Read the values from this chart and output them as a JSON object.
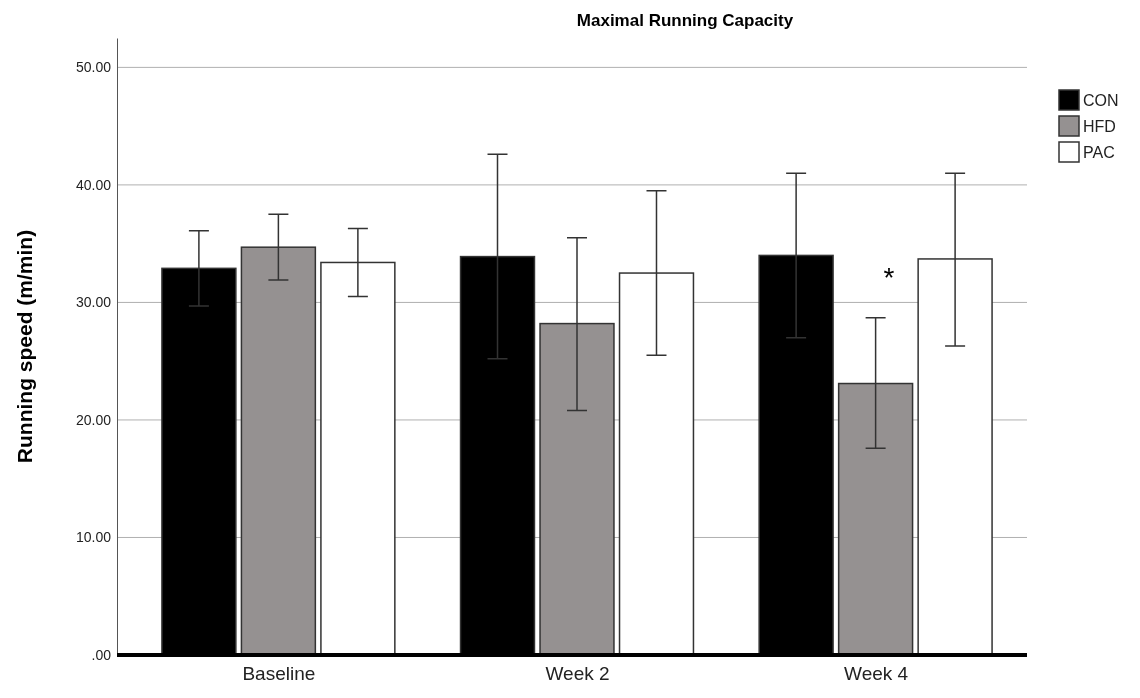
{
  "chart_data": {
    "type": "bar",
    "title": "Maximal Running Capacity",
    "ylabel": "Running speed (m/min)",
    "categories": [
      "Baseline",
      "Week 2",
      "Week 4"
    ],
    "series": [
      {
        "name": "CON",
        "color": "#000000",
        "values": [
          32.9,
          33.9,
          34.0
        ],
        "errors": [
          3.2,
          8.7,
          7.0
        ]
      },
      {
        "name": "HFD",
        "color": "#959191",
        "values": [
          34.7,
          28.2,
          23.1
        ],
        "errors": [
          [
            31.9,
            37.5
          ],
          [
            20.8,
            35.5
          ],
          [
            17.6,
            28.7
          ]
        ]
      },
      {
        "name": "PAC",
        "color": "#ffffff",
        "values": [
          33.4,
          32.5,
          33.7
        ],
        "errors": [
          [
            30.5,
            36.3
          ],
          [
            25.5,
            39.5
          ],
          [
            26.3,
            41.0
          ]
        ]
      }
    ],
    "ylim": [
      0,
      52.5
    ],
    "yticks": [
      {
        "value": 0,
        "label": ".00"
      },
      {
        "value": 10,
        "label": "10.00"
      },
      {
        "value": 20,
        "label": "20.00"
      },
      {
        "value": 30,
        "label": "30.00"
      },
      {
        "value": 40,
        "label": "40.00"
      },
      {
        "value": 50,
        "label": "50.00"
      }
    ],
    "grid": "y",
    "legend": "top right",
    "annotations": [
      "*"
    ]
  }
}
